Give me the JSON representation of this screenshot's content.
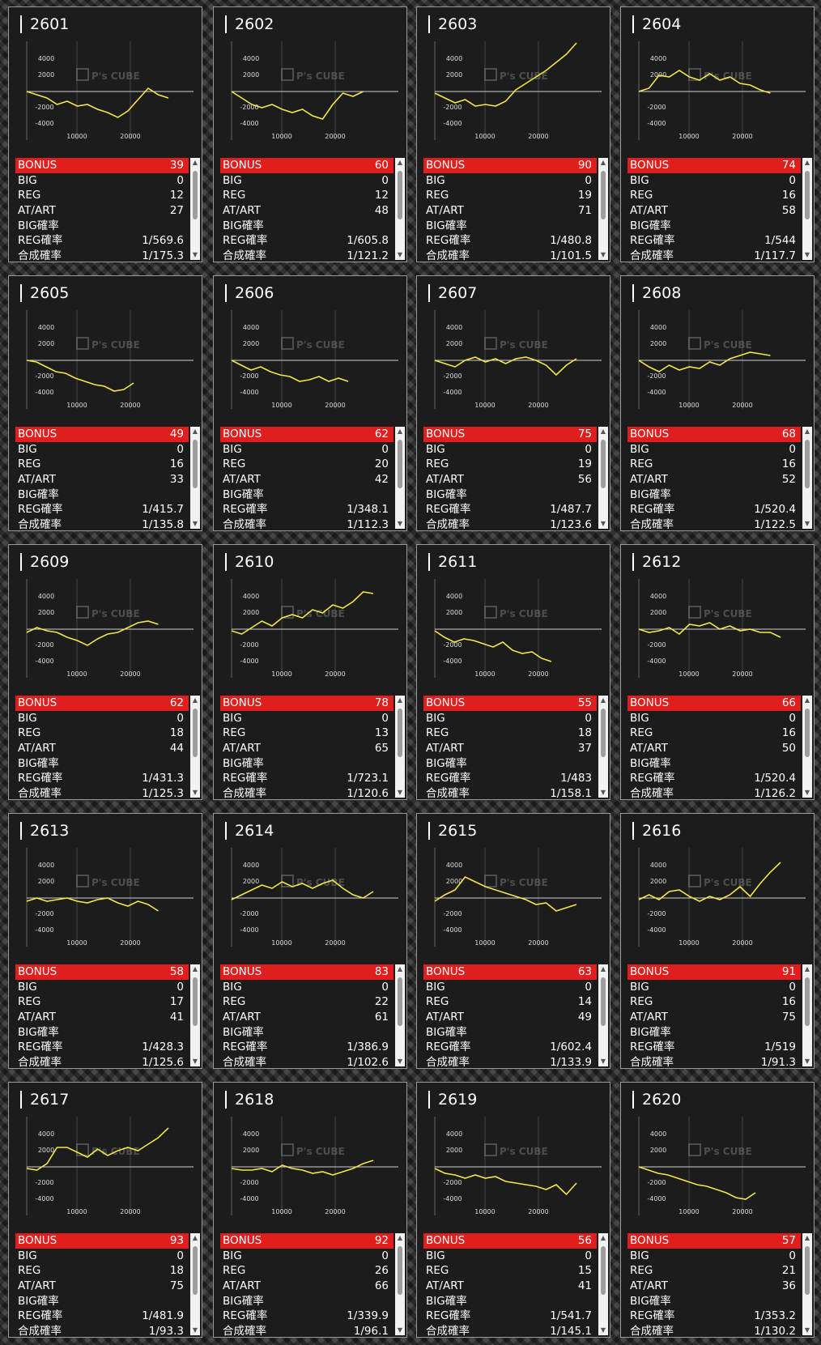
{
  "labels": {
    "bonus": "BONUS",
    "big": "BIG",
    "reg": "REG",
    "at": "AT/ART",
    "big_rate": "BIG確率",
    "reg_rate": "REG確率",
    "total_rate": "合成確率"
  },
  "watermark": "P's CUBE",
  "axis": {
    "y_ticks": [
      "4000",
      "2000",
      "-2000",
      "-4000"
    ],
    "x_ticks": [
      "10000",
      "20000"
    ]
  },
  "colors": {
    "line": "#f2e64a",
    "bonus_bar": "#e01e1e"
  },
  "machines": [
    {
      "id": "2601",
      "bonus": "39",
      "big": "0",
      "reg": "12",
      "at": "27",
      "big_rate": "",
      "reg_rate": "1/569.6",
      "total_rate": "1/175.3",
      "series": [
        0,
        -400,
        -800,
        -1600,
        -1200,
        -1800,
        -1600,
        -2200,
        -2600,
        -3200,
        -2400,
        -1000,
        400,
        -400,
        -800
      ]
    },
    {
      "id": "2602",
      "bonus": "60",
      "big": "0",
      "reg": "12",
      "at": "48",
      "big_rate": "",
      "reg_rate": "1/605.8",
      "total_rate": "1/121.2",
      "series": [
        0,
        -800,
        -1600,
        -2000,
        -1600,
        -2200,
        -2600,
        -2200,
        -3000,
        -3400,
        -1600,
        -200,
        -600,
        0
      ]
    },
    {
      "id": "2603",
      "bonus": "90",
      "big": "0",
      "reg": "19",
      "at": "71",
      "big_rate": "",
      "reg_rate": "1/480.8",
      "total_rate": "1/101.5",
      "series": [
        -200,
        -800,
        -1400,
        -1000,
        -1800,
        -1600,
        -1800,
        -1200,
        200,
        1000,
        1800,
        2600,
        3600,
        4600,
        6000
      ]
    },
    {
      "id": "2604",
      "bonus": "74",
      "big": "0",
      "reg": "16",
      "at": "58",
      "big_rate": "",
      "reg_rate": "1/544",
      "total_rate": "1/117.7",
      "series": [
        0,
        400,
        2000,
        1800,
        2600,
        1800,
        1400,
        2200,
        1400,
        1800,
        1000,
        800,
        200,
        -200
      ]
    },
    {
      "id": "2605",
      "bonus": "49",
      "big": "0",
      "reg": "16",
      "at": "33",
      "big_rate": "",
      "reg_rate": "1/415.7",
      "total_rate": "1/135.8",
      "series": [
        0,
        -200,
        -800,
        -1400,
        -1600,
        -2200,
        -2600,
        -3000,
        -3200,
        -3800,
        -3600,
        -2800
      ]
    },
    {
      "id": "2606",
      "bonus": "62",
      "big": "0",
      "reg": "20",
      "at": "42",
      "big_rate": "",
      "reg_rate": "1/348.1",
      "total_rate": "1/112.3",
      "series": [
        0,
        -600,
        -1200,
        -800,
        -1400,
        -1800,
        -2000,
        -2600,
        -2400,
        -2000,
        -2600,
        -2200,
        -2600
      ]
    },
    {
      "id": "2607",
      "bonus": "75",
      "big": "0",
      "reg": "19",
      "at": "56",
      "big_rate": "",
      "reg_rate": "1/487.7",
      "total_rate": "1/123.6",
      "series": [
        0,
        -400,
        -800,
        0,
        400,
        -200,
        200,
        -400,
        200,
        400,
        0,
        -600,
        -1800,
        -600,
        200
      ]
    },
    {
      "id": "2608",
      "bonus": "68",
      "big": "0",
      "reg": "16",
      "at": "52",
      "big_rate": "",
      "reg_rate": "1/520.4",
      "total_rate": "1/122.5",
      "series": [
        0,
        -800,
        -1400,
        -600,
        -1200,
        -800,
        -1000,
        -200,
        -600,
        200,
        600,
        1000,
        800,
        600
      ]
    },
    {
      "id": "2609",
      "bonus": "62",
      "big": "0",
      "reg": "18",
      "at": "44",
      "big_rate": "",
      "reg_rate": "1/431.3",
      "total_rate": "1/125.3",
      "series": [
        -400,
        200,
        -200,
        -400,
        -1000,
        -1400,
        -2000,
        -1200,
        -600,
        -400,
        200,
        800,
        1000,
        600
      ]
    },
    {
      "id": "2610",
      "bonus": "78",
      "big": "0",
      "reg": "13",
      "at": "65",
      "big_rate": "",
      "reg_rate": "1/723.1",
      "total_rate": "1/120.6",
      "series": [
        -200,
        -600,
        200,
        1000,
        400,
        1400,
        1800,
        1400,
        2400,
        2000,
        3000,
        2600,
        3400,
        4600,
        4400
      ]
    },
    {
      "id": "2611",
      "bonus": "55",
      "big": "0",
      "reg": "18",
      "at": "37",
      "big_rate": "",
      "reg_rate": "1/483",
      "total_rate": "1/158.1",
      "series": [
        -200,
        -1000,
        -1600,
        -1200,
        -1400,
        -1800,
        -2200,
        -1600,
        -2600,
        -3000,
        -2800,
        -3600,
        -4000
      ]
    },
    {
      "id": "2612",
      "bonus": "66",
      "big": "0",
      "reg": "16",
      "at": "50",
      "big_rate": "",
      "reg_rate": "1/520.4",
      "total_rate": "1/126.2",
      "series": [
        0,
        -400,
        -200,
        200,
        -600,
        600,
        400,
        800,
        0,
        400,
        -200,
        0,
        -400,
        -400,
        -1000
      ]
    },
    {
      "id": "2613",
      "bonus": "58",
      "big": "0",
      "reg": "17",
      "at": "41",
      "big_rate": "",
      "reg_rate": "1/428.3",
      "total_rate": "1/125.6",
      "series": [
        -400,
        0,
        -400,
        -200,
        0,
        -400,
        -600,
        -200,
        0,
        -600,
        -1000,
        -400,
        -800,
        -1600
      ]
    },
    {
      "id": "2614",
      "bonus": "83",
      "big": "0",
      "reg": "22",
      "at": "61",
      "big_rate": "",
      "reg_rate": "1/386.9",
      "total_rate": "1/102.6",
      "series": [
        -200,
        400,
        1000,
        1600,
        1200,
        2000,
        1400,
        1800,
        1200,
        1800,
        2200,
        1200,
        400,
        0,
        800
      ]
    },
    {
      "id": "2615",
      "bonus": "63",
      "big": "0",
      "reg": "14",
      "at": "49",
      "big_rate": "",
      "reg_rate": "1/602.4",
      "total_rate": "1/133.9",
      "series": [
        -400,
        400,
        1000,
        2600,
        2000,
        1400,
        1000,
        600,
        200,
        -200,
        -800,
        -600,
        -1600,
        -1200,
        -800
      ]
    },
    {
      "id": "2616",
      "bonus": "91",
      "big": "0",
      "reg": "16",
      "at": "75",
      "big_rate": "",
      "reg_rate": "1/519",
      "total_rate": "1/91.3",
      "series": [
        -200,
        400,
        -200,
        800,
        1000,
        200,
        -400,
        200,
        -200,
        400,
        1400,
        200,
        1800,
        3200,
        4400
      ]
    },
    {
      "id": "2617",
      "bonus": "93",
      "big": "0",
      "reg": "18",
      "at": "75",
      "big_rate": "",
      "reg_rate": "1/481.9",
      "total_rate": "1/93.3",
      "series": [
        -200,
        -400,
        400,
        2400,
        2400,
        1800,
        1200,
        2200,
        1400,
        2000,
        2400,
        2000,
        2800,
        3600,
        4800
      ]
    },
    {
      "id": "2618",
      "bonus": "92",
      "big": "0",
      "reg": "26",
      "at": "66",
      "big_rate": "",
      "reg_rate": "1/339.9",
      "total_rate": "1/96.1",
      "series": [
        -200,
        -400,
        -400,
        -200,
        -600,
        200,
        -200,
        -400,
        -800,
        -600,
        -1000,
        -600,
        -200,
        400,
        800
      ]
    },
    {
      "id": "2619",
      "bonus": "56",
      "big": "0",
      "reg": "15",
      "at": "41",
      "big_rate": "",
      "reg_rate": "1/541.7",
      "total_rate": "1/145.1",
      "series": [
        -200,
        -800,
        -1000,
        -1400,
        -1000,
        -1400,
        -1200,
        -1800,
        -2000,
        -2200,
        -2400,
        -2800,
        -2200,
        -3400,
        -2000
      ]
    },
    {
      "id": "2620",
      "bonus": "57",
      "big": "0",
      "reg": "21",
      "at": "36",
      "big_rate": "",
      "reg_rate": "1/353.2",
      "total_rate": "1/130.2",
      "series": [
        0,
        -400,
        -800,
        -1000,
        -1400,
        -1800,
        -2200,
        -2400,
        -2800,
        -3200,
        -3800,
        -4000,
        -3200
      ]
    }
  ]
}
